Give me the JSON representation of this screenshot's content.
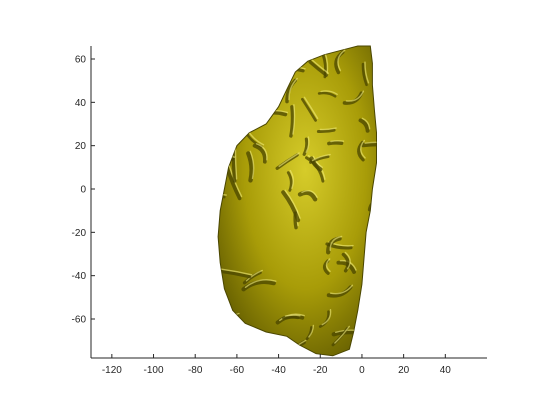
{
  "chart_data": {
    "type": "surface-3d",
    "title": "",
    "xlabel": "",
    "ylabel": "",
    "xlim": [
      -130,
      60
    ],
    "ylim": [
      -78,
      66
    ],
    "x_ticks": [
      -120,
      -100,
      -80,
      -60,
      -40,
      -20,
      0,
      20,
      40
    ],
    "y_ticks": [
      -60,
      -40,
      -20,
      0,
      20,
      40,
      60
    ],
    "x_tick_labels": [
      "-120",
      "-100",
      "-80",
      "-60",
      "-40",
      "-20",
      "0",
      "20",
      "40"
    ],
    "y_tick_labels": [
      "-60",
      "-40",
      "-20",
      "0",
      "20",
      "40",
      "60"
    ],
    "grid": false,
    "box": false,
    "surface": {
      "name": "cortical-surface-left-hemisphere",
      "color": "#b8ad12",
      "shadow_color": "#4a4600",
      "highlight_color": "#f2ec7c",
      "x_range": [
        -69,
        7
      ],
      "y_range": [
        -77,
        66
      ]
    },
    "colors": {
      "axis": "#262626",
      "background": "#ffffff"
    }
  }
}
